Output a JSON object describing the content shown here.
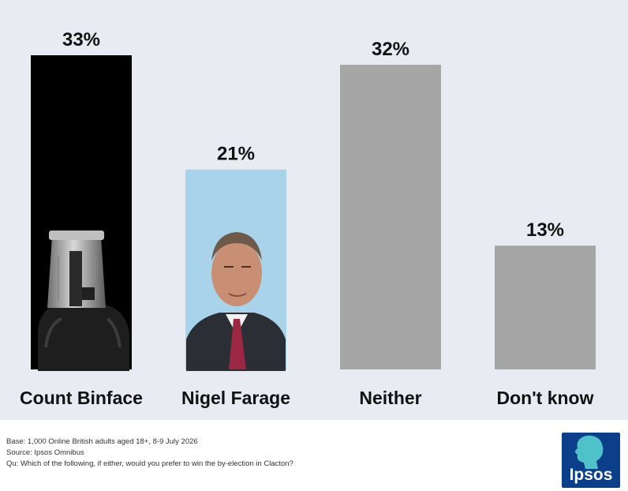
{
  "chart_data": {
    "type": "bar",
    "categories": [
      "Count Binface",
      "Nigel Farage",
      "Neither",
      "Don't know"
    ],
    "values": [
      33,
      21,
      32,
      13
    ],
    "value_labels": [
      "33%",
      "21%",
      "32%",
      "13%"
    ],
    "unit": "%",
    "ylim": [
      0,
      33
    ],
    "colors": [
      "#000000",
      "#a9d3ea",
      "#a6a6a6",
      "#a6a6a6"
    ],
    "bar_images": [
      "knight-helmet-figure",
      "man-in-suit-portrait",
      "",
      ""
    ],
    "grid": false,
    "legend": "none"
  },
  "footer": {
    "base": "Base: 1,000 Online British adults aged 18+, 8-9 July 2026",
    "source": "Source: Ipsos Omnibus",
    "question": "Qu: Which of the following, if either, would you prefer to win the by-election in Clacton?"
  },
  "logo": {
    "text": "Ipsos",
    "icon": "head-silhouette-icon",
    "color": "#0c3f8a"
  }
}
